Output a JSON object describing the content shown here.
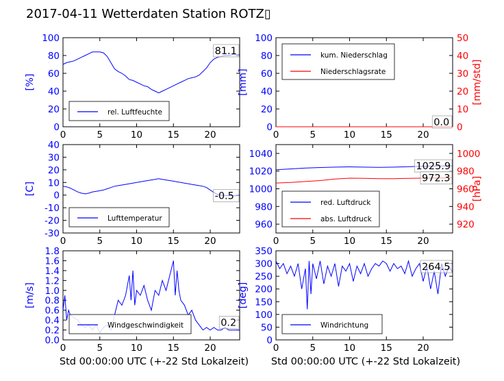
{
  "title": "2017-04-11 Wetterdaten Station ROTZ▯",
  "xlabel": "Std 00:00:00 UTC (+-22 Std Lokalzeit)",
  "colors": {
    "primary": "#0000ff",
    "secondary": "#ff0000",
    "text": "#000000"
  },
  "chart_data": [
    {
      "id": "humidity",
      "type": "line",
      "ylabel": "[%]",
      "xlim": [
        0,
        24
      ],
      "ylim": [
        0,
        100
      ],
      "xticks": [
        "0",
        "5",
        "10",
        "15",
        "20"
      ],
      "yticks": [
        "0",
        "20",
        "40",
        "60",
        "80",
        "100"
      ],
      "legend": [
        "rel. Luftfeuchte"
      ],
      "legend_position": "lower-left",
      "annotation": "81.1",
      "series": [
        {
          "name": "rel. Luftfeuchte",
          "x": [
            0,
            0.5,
            1,
            1.5,
            2,
            2.5,
            3,
            3.5,
            4,
            4.5,
            5,
            5.5,
            6,
            6.5,
            7,
            7.5,
            8,
            8.5,
            9,
            9.5,
            10,
            10.5,
            11,
            11.5,
            12,
            12.5,
            13,
            13.5,
            14,
            14.5,
            15,
            15.5,
            16,
            16.5,
            17,
            17.5,
            18,
            18.5,
            19,
            19.5,
            20,
            20.5,
            21,
            21.5,
            22,
            22.5,
            23,
            23.5,
            24
          ],
          "y": [
            70,
            72,
            73,
            74,
            76,
            78,
            80,
            82,
            84,
            84,
            84,
            83,
            79,
            72,
            65,
            62,
            60,
            57,
            53,
            52,
            50,
            48,
            46,
            45,
            42,
            40,
            38,
            40,
            42,
            44,
            46,
            48,
            50,
            52,
            54,
            55,
            56,
            58,
            62,
            66,
            72,
            76,
            78,
            79,
            80,
            80,
            81,
            81,
            81.1
          ]
        }
      ]
    },
    {
      "id": "precip",
      "type": "line",
      "ylabel": "[mm]",
      "y2label": "[mm/std]",
      "xlim": [
        0,
        24
      ],
      "ylim": [
        0,
        100
      ],
      "y2lim": [
        0,
        50
      ],
      "xticks": [
        "0",
        "5",
        "10",
        "15",
        "20"
      ],
      "yticks": [
        "0",
        "20",
        "40",
        "60",
        "80",
        "100"
      ],
      "y2ticks": [
        "0",
        "10",
        "20",
        "30",
        "40",
        "50"
      ],
      "legend": [
        "kum. Niederschlag",
        "Niederschlagsrate"
      ],
      "legend_position": "upper-left",
      "annotation": "0.0",
      "series": [
        {
          "name": "kum. Niederschlag",
          "x": [
            0,
            24
          ],
          "y": [
            0,
            0
          ]
        },
        {
          "name": "Niederschlagsrate",
          "x": [
            0,
            24
          ],
          "y": [
            0,
            0
          ]
        }
      ]
    },
    {
      "id": "temperature",
      "type": "line",
      "ylabel": "[C]",
      "xlim": [
        0,
        24
      ],
      "ylim": [
        -30,
        40
      ],
      "xticks": [
        "0",
        "5",
        "10",
        "15",
        "20"
      ],
      "yticks": [
        "-30",
        "-20",
        "-10",
        "0",
        "10",
        "20",
        "30",
        "40"
      ],
      "legend": [
        "Lufttemperatur"
      ],
      "legend_position": "lower-left",
      "annotation": "-0.5",
      "series": [
        {
          "name": "Lufttemperatur",
          "x": [
            0,
            0.5,
            1,
            1.5,
            2,
            2.5,
            3,
            3.5,
            4,
            4.5,
            5,
            5.5,
            6,
            6.5,
            7,
            7.5,
            8,
            8.5,
            9,
            9.5,
            10,
            10.5,
            11,
            11.5,
            12,
            12.5,
            13,
            13.5,
            14,
            14.5,
            15,
            15.5,
            16,
            16.5,
            17,
            17.5,
            18,
            18.5,
            19,
            19.5,
            20,
            20.5,
            21,
            21.5,
            22,
            22.5,
            23,
            23.5,
            24
          ],
          "y": [
            7,
            6.5,
            5.5,
            4,
            2.5,
            1.5,
            1,
            1.5,
            2.5,
            3,
            3.5,
            4,
            5,
            6,
            7,
            7.5,
            8,
            8.5,
            9,
            9.5,
            10,
            10.5,
            11,
            11.5,
            12,
            12.5,
            13,
            12.5,
            12,
            11.5,
            11,
            10.5,
            10,
            9.5,
            9,
            8.5,
            8,
            7.5,
            7,
            6,
            4,
            2,
            0.5,
            0,
            -0.3,
            -0.4,
            -0.5,
            -0.5,
            -0.5
          ]
        }
      ]
    },
    {
      "id": "pressure",
      "type": "line",
      "ylabel": "",
      "y2label": "[hPa]",
      "xlim": [
        0,
        24
      ],
      "ylim": [
        950,
        1050
      ],
      "y2lim": [
        910,
        1010
      ],
      "xticks": [
        "0",
        "5",
        "10",
        "15",
        "20"
      ],
      "yticks": [
        "960",
        "980",
        "1000",
        "1020",
        "1040"
      ],
      "y2ticks": [
        "920",
        "940",
        "960",
        "980",
        "1000"
      ],
      "legend": [
        "red. Luftdruck",
        "abs. Luftdruck"
      ],
      "legend_position": "lower-left",
      "annotations": [
        "1025.9",
        "972.3"
      ],
      "series": [
        {
          "name": "red. Luftdruck",
          "x": [
            0,
            2,
            4,
            6,
            8,
            10,
            12,
            14,
            16,
            18,
            20,
            22,
            24
          ],
          "y": [
            1021.5,
            1022.5,
            1023.5,
            1024,
            1024.5,
            1024.8,
            1024.5,
            1024.3,
            1024.5,
            1025,
            1025.5,
            1025.8,
            1025.9
          ]
        },
        {
          "name": "abs. Luftdruck",
          "x": [
            0,
            2,
            4,
            6,
            8,
            10,
            12,
            14,
            16,
            18,
            20,
            22,
            24
          ],
          "y": [
            966.5,
            967.2,
            968.2,
            969.3,
            971,
            972,
            971.8,
            971.5,
            971.5,
            971.8,
            972,
            972.2,
            972.3
          ]
        }
      ]
    },
    {
      "id": "wind",
      "type": "line",
      "ylabel": "[m/s]",
      "xlim": [
        0,
        24
      ],
      "ylim": [
        0,
        1.8
      ],
      "xticks": [
        "0",
        "5",
        "10",
        "15",
        "20"
      ],
      "yticks": [
        "0.0",
        "0.2",
        "0.4",
        "0.6",
        "0.8",
        "1.0",
        "1.2",
        "1.4",
        "1.6",
        "1.8"
      ],
      "legend": [
        "Windgeschwindigkeit"
      ],
      "legend_position": "lower-left",
      "annotation": "0.2",
      "series": [
        {
          "name": "Windgeschwindigkeit",
          "x": [
            0,
            0.25,
            0.5,
            0.75,
            1,
            1.5,
            2,
            2.5,
            3,
            3.5,
            4,
            4.5,
            5,
            5.5,
            6,
            6.5,
            7,
            7.5,
            8,
            8.5,
            9,
            9.25,
            9.5,
            9.75,
            10,
            10.5,
            11,
            11.5,
            12,
            12.5,
            13,
            13.5,
            14,
            14.5,
            15,
            15.25,
            15.5,
            15.75,
            16,
            16.5,
            17,
            17.5,
            18,
            18.5,
            19,
            19.5,
            20,
            20.5,
            21,
            21.5,
            22,
            22.5,
            23,
            23.5,
            24
          ],
          "y": [
            0.6,
            0.9,
            0.4,
            0.6,
            0.5,
            0.45,
            0.4,
            0.3,
            0.25,
            0.3,
            0.2,
            0.3,
            0.15,
            0.25,
            0.3,
            0.2,
            0.5,
            0.8,
            0.7,
            0.9,
            1.3,
            0.8,
            1.4,
            0.7,
            1.0,
            0.9,
            1.1,
            0.8,
            0.6,
            1.0,
            0.9,
            1.2,
            1.0,
            1.3,
            1.6,
            0.9,
            1.4,
            1.0,
            0.8,
            0.7,
            0.5,
            0.6,
            0.4,
            0.3,
            0.2,
            0.25,
            0.2,
            0.25,
            0.2,
            0.2,
            0.25,
            0.2,
            0.2,
            0.2,
            0.2
          ]
        }
      ]
    },
    {
      "id": "winddir",
      "type": "line",
      "ylabel": "[deg]",
      "xlim": [
        0,
        24
      ],
      "ylim": [
        0,
        350
      ],
      "xticks": [
        "0",
        "5",
        "10",
        "15",
        "20"
      ],
      "yticks": [
        "0",
        "50",
        "100",
        "150",
        "200",
        "250",
        "300",
        "350"
      ],
      "legend": [
        "Windrichtung"
      ],
      "legend_position": "lower-left",
      "annotation": "264.5",
      "series": [
        {
          "name": "Windrichtung",
          "x": [
            0,
            0.5,
            1,
            1.5,
            2,
            2.5,
            3,
            3.5,
            4,
            4.25,
            4.5,
            4.75,
            5,
            5.5,
            6,
            6.5,
            7,
            7.5,
            8,
            8.5,
            9,
            9.5,
            10,
            10.5,
            11,
            11.5,
            12,
            12.5,
            13,
            13.5,
            14,
            14.5,
            15,
            15.5,
            16,
            16.5,
            17,
            17.5,
            18,
            18.5,
            19,
            19.5,
            20,
            20.5,
            21,
            21.5,
            22,
            22.5,
            23,
            23.5,
            24
          ],
          "y": [
            310,
            280,
            300,
            260,
            290,
            250,
            300,
            200,
            280,
            120,
            310,
            180,
            300,
            240,
            310,
            220,
            290,
            250,
            300,
            210,
            290,
            270,
            300,
            230,
            290,
            260,
            300,
            250,
            280,
            300,
            290,
            310,
            300,
            270,
            300,
            280,
            290,
            260,
            310,
            250,
            280,
            300,
            230,
            290,
            200,
            270,
            180,
            300,
            250,
            290,
            264.5
          ]
        }
      ]
    }
  ]
}
